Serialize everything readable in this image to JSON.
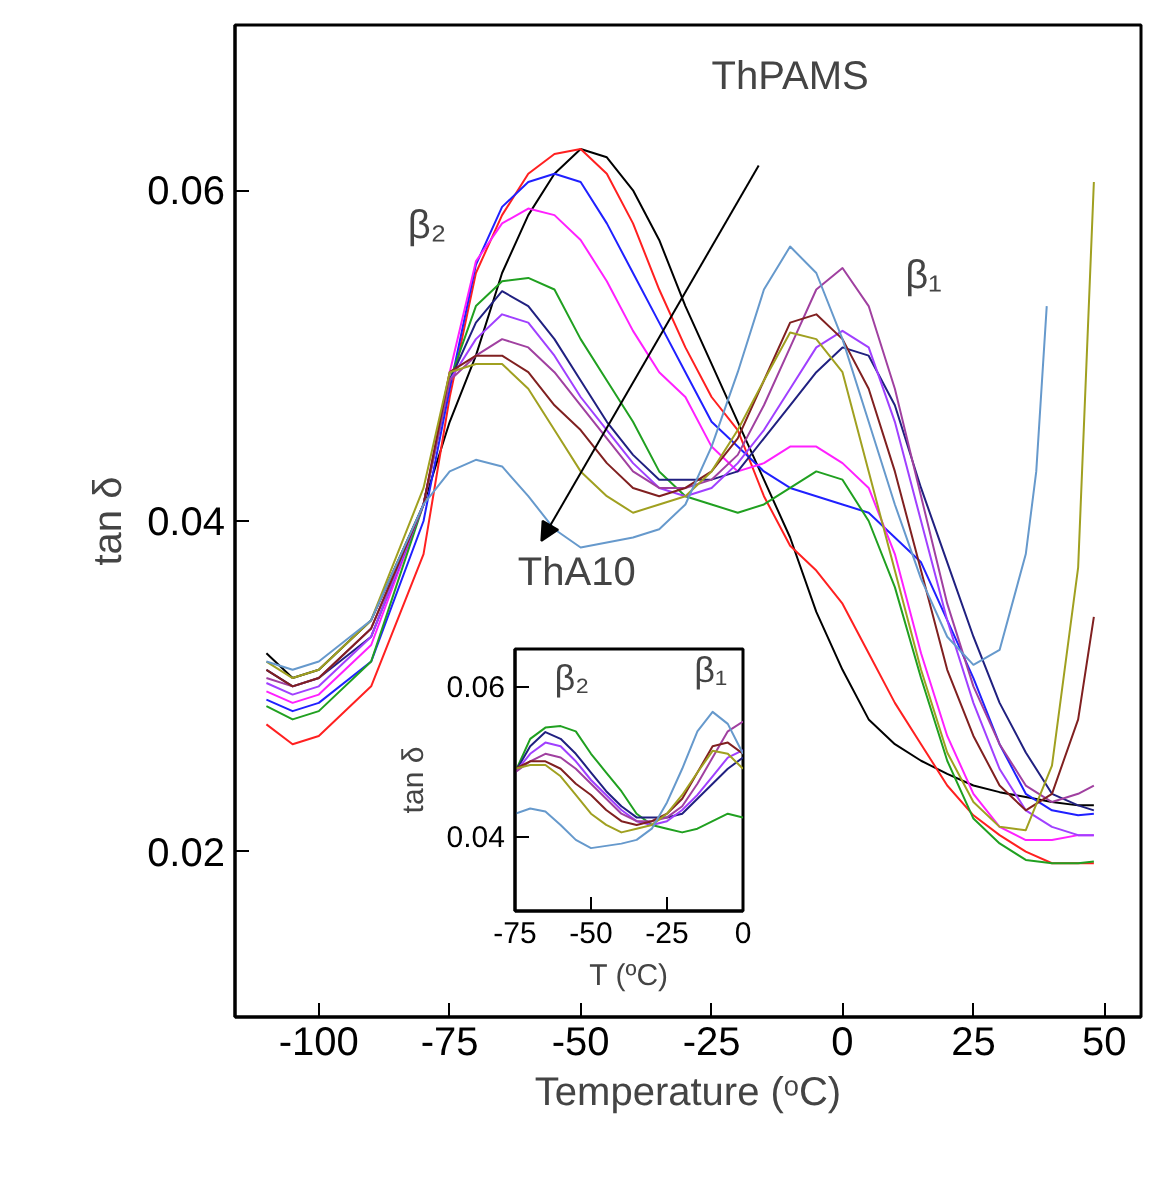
{
  "chart_data": [
    {
      "type": "line",
      "xlabel": "Temperature (ᵒC)",
      "ylabel": "tan δ",
      "xlim": [
        -116,
        57
      ],
      "ylim": [
        0.01,
        0.07
      ],
      "xticks": [
        -100,
        -75,
        -50,
        -25,
        0,
        25,
        50
      ],
      "yticks": [
        0.02,
        0.04,
        0.06
      ],
      "grid": false,
      "annotations": [
        "ThPAMS",
        "ThA10",
        "β₂",
        "β₁"
      ],
      "x": [
        -110,
        -105,
        -100,
        -90,
        -80,
        -75,
        -70,
        -65,
        -60,
        -55,
        -50,
        -45,
        -40,
        -35,
        -30,
        -25,
        -20,
        -15,
        -10,
        -5,
        0,
        5,
        10,
        15,
        20,
        25,
        30,
        35,
        40,
        45,
        48
      ],
      "series": [
        {
          "color": "#000000",
          "values": [
            0.032,
            0.0305,
            0.031,
            0.034,
            0.041,
            0.046,
            0.05,
            0.055,
            0.0585,
            0.061,
            0.0625,
            0.062,
            0.06,
            0.057,
            0.053,
            0.0495,
            0.046,
            0.0425,
            0.039,
            0.0345,
            0.031,
            0.028,
            0.0265,
            0.0255,
            0.0247,
            0.024,
            0.0236,
            0.0233,
            0.023,
            0.0228,
            0.0228
          ]
        },
        {
          "color": "#ff2020",
          "values": [
            0.0277,
            0.0265,
            0.027,
            0.03,
            0.038,
            0.0475,
            0.055,
            0.0585,
            0.061,
            0.0622,
            0.0625,
            0.061,
            0.058,
            0.054,
            0.0505,
            0.0475,
            0.0455,
            0.0415,
            0.0385,
            0.037,
            0.035,
            0.032,
            0.029,
            0.0265,
            0.024,
            0.0222,
            0.021,
            0.02,
            0.0193,
            0.0193,
            0.0193
          ]
        },
        {
          "color": "#2020ff",
          "values": [
            0.0292,
            0.0285,
            0.029,
            0.0315,
            0.04,
            0.048,
            0.0555,
            0.059,
            0.0605,
            0.061,
            0.0605,
            0.058,
            0.055,
            0.052,
            0.049,
            0.046,
            0.0445,
            0.043,
            0.042,
            0.0415,
            0.041,
            0.0405,
            0.039,
            0.0375,
            0.034,
            0.0305,
            0.0265,
            0.0235,
            0.0225,
            0.0222,
            0.0223
          ]
        },
        {
          "color": "#ff20ff",
          "values": [
            0.0297,
            0.029,
            0.0295,
            0.0325,
            0.041,
            0.049,
            0.0557,
            0.058,
            0.0589,
            0.0585,
            0.057,
            0.0545,
            0.0515,
            0.049,
            0.0475,
            0.0445,
            0.043,
            0.0435,
            0.0445,
            0.0445,
            0.0435,
            0.042,
            0.038,
            0.032,
            0.027,
            0.0235,
            0.0215,
            0.0207,
            0.0207,
            0.021,
            0.021
          ]
        },
        {
          "color": "#20a020",
          "values": [
            0.0288,
            0.028,
            0.0285,
            0.0315,
            0.041,
            0.0485,
            0.053,
            0.0545,
            0.0547,
            0.054,
            0.051,
            0.0485,
            0.046,
            0.043,
            0.0415,
            0.041,
            0.0405,
            0.041,
            0.042,
            0.043,
            0.0425,
            0.04,
            0.036,
            0.0305,
            0.0255,
            0.022,
            0.0205,
            0.0195,
            0.0193,
            0.0193,
            0.0194
          ]
        },
        {
          "color": "#202080",
          "values": [
            0.031,
            0.03,
            0.0305,
            0.033,
            0.041,
            0.0485,
            0.052,
            0.0539,
            0.053,
            0.051,
            0.0485,
            0.046,
            0.044,
            0.0425,
            0.0425,
            0.0425,
            0.043,
            0.045,
            0.047,
            0.049,
            0.0505,
            0.05,
            0.047,
            0.042,
            0.0375,
            0.033,
            0.029,
            0.026,
            0.0235,
            0.0228,
            0.0225
          ]
        },
        {
          "color": "#a040ff",
          "values": [
            0.0302,
            0.0295,
            0.03,
            0.033,
            0.041,
            0.0485,
            0.051,
            0.0525,
            0.052,
            0.05,
            0.0475,
            0.0455,
            0.0435,
            0.042,
            0.0415,
            0.042,
            0.0435,
            0.0455,
            0.048,
            0.0505,
            0.0515,
            0.0505,
            0.046,
            0.04,
            0.034,
            0.029,
            0.025,
            0.0225,
            0.0215,
            0.021,
            0.021
          ]
        },
        {
          "color": "#a040a0",
          "values": [
            0.0305,
            0.03,
            0.0305,
            0.0335,
            0.041,
            0.0485,
            0.05,
            0.051,
            0.0505,
            0.049,
            0.047,
            0.045,
            0.043,
            0.042,
            0.042,
            0.0425,
            0.044,
            0.047,
            0.0505,
            0.054,
            0.0553,
            0.053,
            0.048,
            0.0415,
            0.035,
            0.03,
            0.0265,
            0.024,
            0.023,
            0.0235,
            0.024
          ]
        },
        {
          "color": "#802020",
          "values": [
            0.031,
            0.03,
            0.0305,
            0.0335,
            0.041,
            0.049,
            0.05,
            0.05,
            0.049,
            0.047,
            0.0455,
            0.0435,
            0.042,
            0.0415,
            0.042,
            0.043,
            0.045,
            0.0485,
            0.052,
            0.0525,
            0.051,
            0.048,
            0.043,
            0.037,
            0.031,
            0.027,
            0.024,
            0.0225,
            0.0235,
            0.028,
            0.0342
          ]
        },
        {
          "color": "#a0a020",
          "values": [
            0.0315,
            0.0305,
            0.031,
            0.034,
            0.042,
            0.049,
            0.0495,
            0.0495,
            0.048,
            0.0455,
            0.043,
            0.0415,
            0.0405,
            0.041,
            0.0415,
            0.043,
            0.0455,
            0.0485,
            0.0514,
            0.051,
            0.049,
            0.043,
            0.037,
            0.031,
            0.026,
            0.023,
            0.0215,
            0.0213,
            0.0252,
            0.0372,
            0.0605
          ]
        },
        {
          "color": "#6699cc",
          "x": [
            -110,
            -105,
            -100,
            -90,
            -80,
            -75,
            -70,
            -65,
            -60,
            -55,
            -50,
            -45,
            -40,
            -35,
            -30,
            -25,
            -20,
            -15,
            -10,
            -5,
            0,
            5,
            10,
            15,
            20,
            25,
            30,
            35,
            37,
            39
          ],
          "values": [
            0.0315,
            0.031,
            0.0315,
            0.034,
            0.041,
            0.043,
            0.0437,
            0.0433,
            0.0415,
            0.0395,
            0.0384,
            0.0387,
            0.039,
            0.0395,
            0.041,
            0.0445,
            0.049,
            0.054,
            0.0566,
            0.055,
            0.051,
            0.046,
            0.041,
            0.0365,
            0.033,
            0.0313,
            0.0322,
            0.038,
            0.043,
            0.053
          ]
        }
      ]
    },
    {
      "type": "line",
      "xlabel": "T (ºC)",
      "ylabel": "tan δ",
      "xlim": [
        -75,
        0
      ],
      "ylim": [
        0.03,
        0.065
      ],
      "xticks": [
        -75,
        -50,
        -25,
        0
      ],
      "yticks": [
        0.04,
        0.06
      ],
      "grid": false,
      "annotations": [
        "β₂",
        "β₁"
      ],
      "x": [
        -75,
        -70,
        -65,
        -60,
        -55,
        -50,
        -45,
        -40,
        -35,
        -30,
        -25,
        -20,
        -15,
        -10,
        -5,
        0
      ],
      "series": [
        {
          "color": "#20a020",
          "values": [
            0.0485,
            0.053,
            0.0545,
            0.0547,
            0.054,
            0.051,
            0.0485,
            0.046,
            0.043,
            0.0415,
            0.041,
            0.0405,
            0.041,
            0.042,
            0.043,
            0.0425
          ]
        },
        {
          "color": "#202080",
          "values": [
            0.0485,
            0.052,
            0.0539,
            0.053,
            0.051,
            0.0485,
            0.046,
            0.044,
            0.0425,
            0.0425,
            0.0425,
            0.043,
            0.045,
            0.047,
            0.049,
            0.0505
          ]
        },
        {
          "color": "#a040ff",
          "values": [
            0.0485,
            0.051,
            0.0525,
            0.052,
            0.05,
            0.0475,
            0.0455,
            0.0435,
            0.042,
            0.0415,
            0.042,
            0.0435,
            0.0455,
            0.048,
            0.0505,
            0.0515
          ]
        },
        {
          "color": "#a040a0",
          "values": [
            0.0485,
            0.05,
            0.051,
            0.0505,
            0.049,
            0.047,
            0.045,
            0.043,
            0.042,
            0.042,
            0.0425,
            0.044,
            0.047,
            0.0505,
            0.054,
            0.0553
          ]
        },
        {
          "color": "#802020",
          "values": [
            0.049,
            0.05,
            0.05,
            0.049,
            0.047,
            0.0455,
            0.0435,
            0.042,
            0.0415,
            0.042,
            0.043,
            0.045,
            0.0485,
            0.052,
            0.0525,
            0.051
          ]
        },
        {
          "color": "#a0a020",
          "values": [
            0.049,
            0.0495,
            0.0495,
            0.048,
            0.0455,
            0.043,
            0.0415,
            0.0405,
            0.041,
            0.0415,
            0.043,
            0.0455,
            0.0485,
            0.0514,
            0.051,
            0.049
          ]
        },
        {
          "color": "#6699cc",
          "values": [
            0.043,
            0.0437,
            0.0433,
            0.0415,
            0.0395,
            0.0384,
            0.0387,
            0.039,
            0.0395,
            0.041,
            0.0445,
            0.049,
            0.054,
            0.0566,
            0.055,
            0.051
          ]
        }
      ]
    }
  ]
}
